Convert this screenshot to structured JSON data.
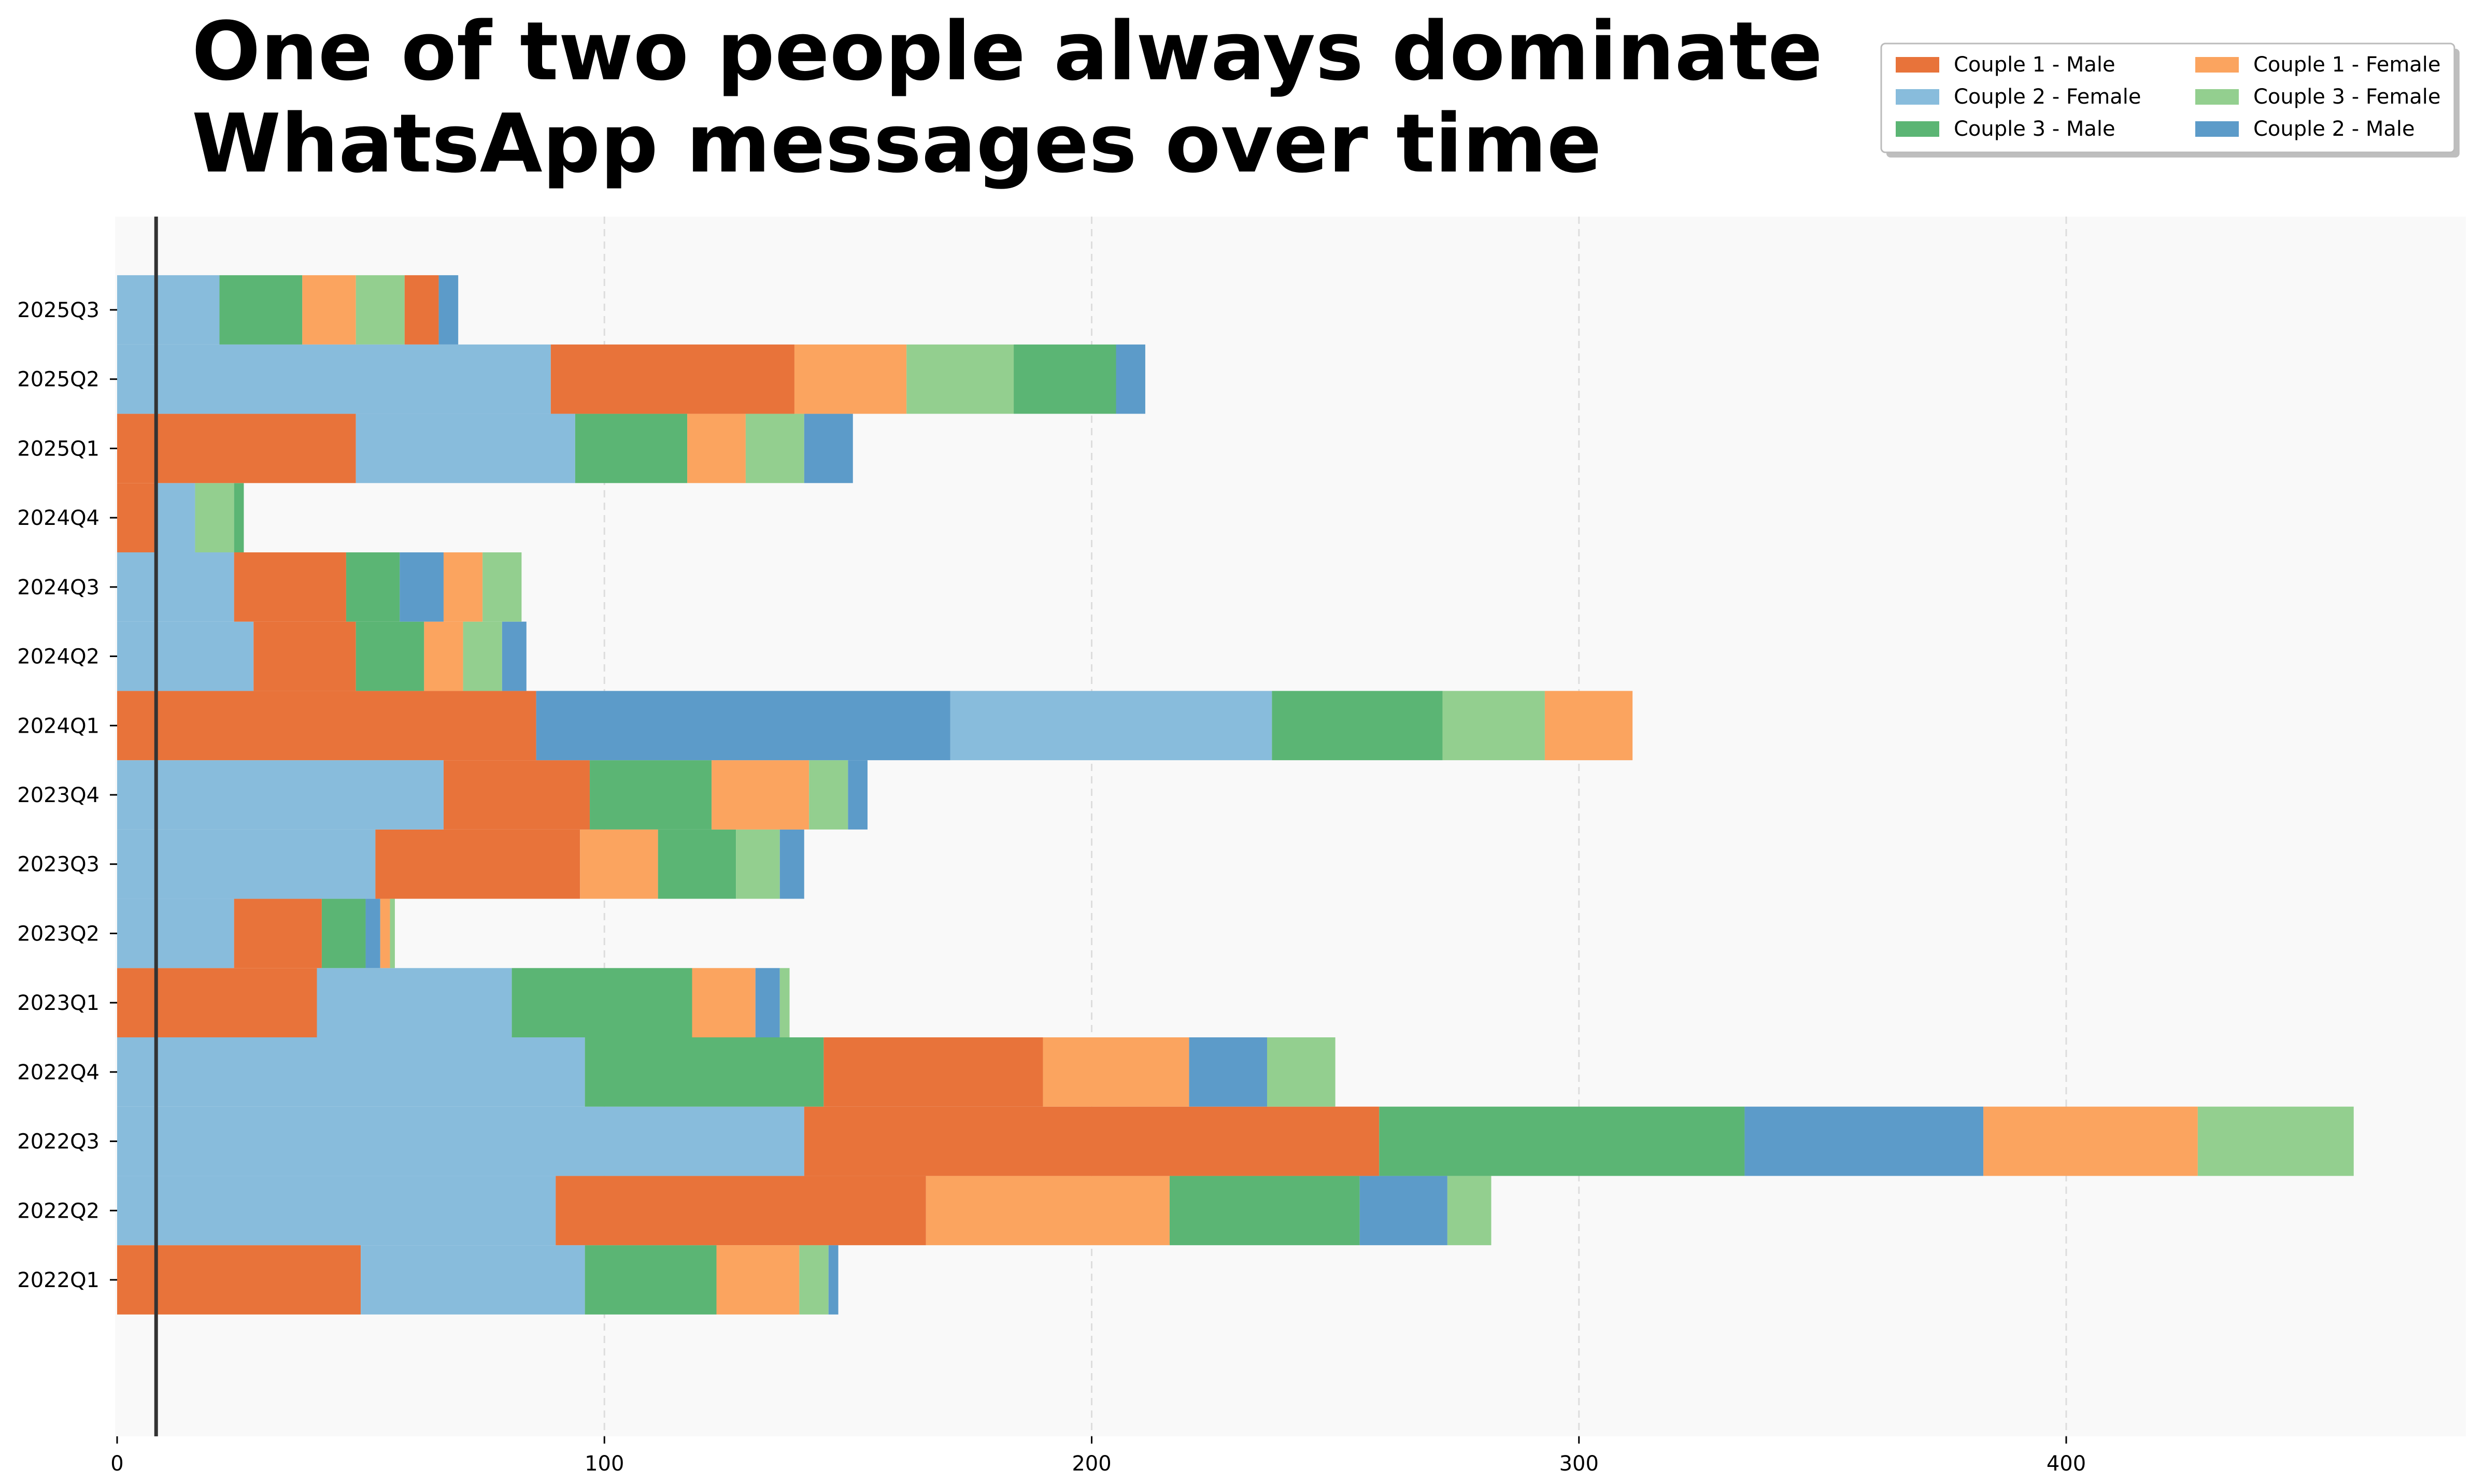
{
  "chart_data": {
    "type": "bar",
    "orientation": "horizontal",
    "stacked": true,
    "title": "One of two people always dominate WhatsApp messages over time",
    "xlabel": "",
    "ylabel": "",
    "xlim": [
      0,
      482
    ],
    "xticks": [
      0,
      100,
      200,
      300,
      400
    ],
    "grid": "vertical dashed",
    "reference_line_x": 8,
    "legend_position": "top-right",
    "categories": [
      "2022Q1",
      "2022Q2",
      "2022Q3",
      "2022Q4",
      "2023Q1",
      "2023Q2",
      "2023Q3",
      "2023Q4",
      "2024Q1",
      "2024Q2",
      "2024Q3",
      "2024Q4",
      "2025Q1",
      "2025Q2",
      "2025Q3"
    ],
    "series_colors": {
      "Couple 1 - Male": "#e8733a",
      "Couple 1 - Female": "#fba45f",
      "Couple 2 - Female": "#88bcdc",
      "Couple 2 - Male": "#5c9bc9",
      "Couple 3 - Male": "#5bb574",
      "Couple 3 - Female": "#93cf8f"
    },
    "legend": [
      "Couple 1 - Male",
      "Couple 1 - Female",
      "Couple 2 - Female",
      "Couple 3 - Female",
      "Couple 3 - Male",
      "Couple 2 - Male"
    ],
    "stacks": [
      {
        "category": "2022Q1",
        "segments": [
          {
            "series": "Couple 1 - Male",
            "value": 50
          },
          {
            "series": "Couple 2 - Female",
            "value": 46
          },
          {
            "series": "Couple 3 - Male",
            "value": 27
          },
          {
            "series": "Couple 1 - Female",
            "value": 17
          },
          {
            "series": "Couple 3 - Female",
            "value": 6
          },
          {
            "series": "Couple 2 - Male",
            "value": 2
          }
        ]
      },
      {
        "category": "2022Q2",
        "segments": [
          {
            "series": "Couple 2 - Female",
            "value": 90
          },
          {
            "series": "Couple 1 - Male",
            "value": 76
          },
          {
            "series": "Couple 1 - Female",
            "value": 50
          },
          {
            "series": "Couple 3 - Male",
            "value": 39
          },
          {
            "series": "Couple 2 - Male",
            "value": 18
          },
          {
            "series": "Couple 3 - Female",
            "value": 9
          }
        ]
      },
      {
        "category": "2022Q3",
        "segments": [
          {
            "series": "Couple 2 - Female",
            "value": 141
          },
          {
            "series": "Couple 1 - Male",
            "value": 118
          },
          {
            "series": "Couple 3 - Male",
            "value": 75
          },
          {
            "series": "Couple 2 - Male",
            "value": 49
          },
          {
            "series": "Couple 1 - Female",
            "value": 44
          },
          {
            "series": "Couple 3 - Female",
            "value": 32
          }
        ]
      },
      {
        "category": "2022Q4",
        "segments": [
          {
            "series": "Couple 2 - Female",
            "value": 96
          },
          {
            "series": "Couple 3 - Male",
            "value": 49
          },
          {
            "series": "Couple 1 - Male",
            "value": 45
          },
          {
            "series": "Couple 1 - Female",
            "value": 30
          },
          {
            "series": "Couple 2 - Male",
            "value": 16
          },
          {
            "series": "Couple 3 - Female",
            "value": 14
          }
        ]
      },
      {
        "category": "2023Q1",
        "segments": [
          {
            "series": "Couple 1 - Male",
            "value": 41
          },
          {
            "series": "Couple 2 - Female",
            "value": 40
          },
          {
            "series": "Couple 3 - Male",
            "value": 37
          },
          {
            "series": "Couple 1 - Female",
            "value": 13
          },
          {
            "series": "Couple 2 - Male",
            "value": 5
          },
          {
            "series": "Couple 3 - Female",
            "value": 2
          }
        ]
      },
      {
        "category": "2023Q2",
        "segments": [
          {
            "series": "Couple 2 - Female",
            "value": 24
          },
          {
            "series": "Couple 1 - Male",
            "value": 18
          },
          {
            "series": "Couple 3 - Male",
            "value": 9
          },
          {
            "series": "Couple 2 - Male",
            "value": 3
          },
          {
            "series": "Couple 1 - Female",
            "value": 2
          },
          {
            "series": "Couple 3 - Female",
            "value": 1
          }
        ]
      },
      {
        "category": "2023Q3",
        "segments": [
          {
            "series": "Couple 2 - Female",
            "value": 53
          },
          {
            "series": "Couple 1 - Male",
            "value": 42
          },
          {
            "series": "Couple 1 - Female",
            "value": 16
          },
          {
            "series": "Couple 3 - Male",
            "value": 16
          },
          {
            "series": "Couple 3 - Female",
            "value": 9
          },
          {
            "series": "Couple 2 - Male",
            "value": 5
          }
        ]
      },
      {
        "category": "2023Q4",
        "segments": [
          {
            "series": "Couple 2 - Female",
            "value": 67
          },
          {
            "series": "Couple 1 - Male",
            "value": 30
          },
          {
            "series": "Couple 3 - Male",
            "value": 25
          },
          {
            "series": "Couple 1 - Female",
            "value": 20
          },
          {
            "series": "Couple 3 - Female",
            "value": 8
          },
          {
            "series": "Couple 2 - Male",
            "value": 4
          }
        ]
      },
      {
        "category": "2024Q1",
        "segments": [
          {
            "series": "Couple 1 - Male",
            "value": 86
          },
          {
            "series": "Couple 2 - Male",
            "value": 85
          },
          {
            "series": "Couple 2 - Female",
            "value": 66
          },
          {
            "series": "Couple 3 - Male",
            "value": 35
          },
          {
            "series": "Couple 3 - Female",
            "value": 21
          },
          {
            "series": "Couple 1 - Female",
            "value": 18
          }
        ]
      },
      {
        "category": "2024Q2",
        "segments": [
          {
            "series": "Couple 2 - Female",
            "value": 28
          },
          {
            "series": "Couple 1 - Male",
            "value": 21
          },
          {
            "series": "Couple 3 - Male",
            "value": 14
          },
          {
            "series": "Couple 1 - Female",
            "value": 8
          },
          {
            "series": "Couple 3 - Female",
            "value": 8
          },
          {
            "series": "Couple 2 - Male",
            "value": 5
          }
        ]
      },
      {
        "category": "2024Q3",
        "segments": [
          {
            "series": "Couple 2 - Female",
            "value": 24
          },
          {
            "series": "Couple 1 - Male",
            "value": 23
          },
          {
            "series": "Couple 3 - Male",
            "value": 11
          },
          {
            "series": "Couple 2 - Male",
            "value": 9
          },
          {
            "series": "Couple 1 - Female",
            "value": 8
          },
          {
            "series": "Couple 3 - Female",
            "value": 8
          }
        ]
      },
      {
        "category": "2024Q4",
        "segments": [
          {
            "series": "Couple 1 - Male",
            "value": 8
          },
          {
            "series": "Couple 2 - Female",
            "value": 8
          },
          {
            "series": "Couple 3 - Female",
            "value": 8
          },
          {
            "series": "Couple 3 - Male",
            "value": 2
          }
        ]
      },
      {
        "category": "2025Q1",
        "segments": [
          {
            "series": "Couple 1 - Male",
            "value": 49
          },
          {
            "series": "Couple 2 - Female",
            "value": 45
          },
          {
            "series": "Couple 3 - Male",
            "value": 23
          },
          {
            "series": "Couple 1 - Female",
            "value": 12
          },
          {
            "series": "Couple 3 - Female",
            "value": 12
          },
          {
            "series": "Couple 2 - Male",
            "value": 10
          }
        ]
      },
      {
        "category": "2025Q2",
        "segments": [
          {
            "series": "Couple 2 - Female",
            "value": 89
          },
          {
            "series": "Couple 1 - Male",
            "value": 50
          },
          {
            "series": "Couple 1 - Female",
            "value": 23
          },
          {
            "series": "Couple 3 - Female",
            "value": 22
          },
          {
            "series": "Couple 3 - Male",
            "value": 21
          },
          {
            "series": "Couple 2 - Male",
            "value": 6
          }
        ]
      },
      {
        "category": "2025Q3",
        "segments": [
          {
            "series": "Couple 2 - Female",
            "value": 21
          },
          {
            "series": "Couple 3 - Male",
            "value": 17
          },
          {
            "series": "Couple 1 - Female",
            "value": 11
          },
          {
            "series": "Couple 3 - Female",
            "value": 10
          },
          {
            "series": "Couple 1 - Male",
            "value": 7
          },
          {
            "series": "Couple 2 - Male",
            "value": 4
          }
        ]
      }
    ]
  }
}
